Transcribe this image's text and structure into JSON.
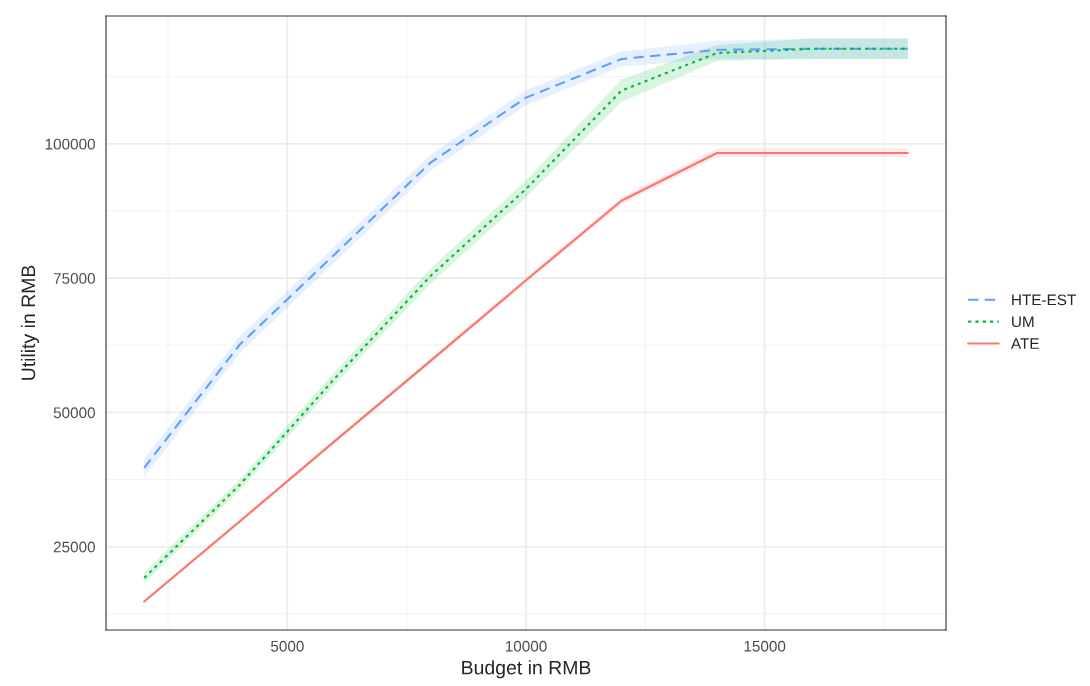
{
  "chart_data": {
    "type": "line",
    "xlabel": "Budget in RMB",
    "ylabel": "Utility in RMB",
    "x": [
      2000,
      4000,
      6000,
      8000,
      10000,
      12000,
      14000,
      16000,
      18000
    ],
    "series": [
      {
        "name": "HTE-EST",
        "color": "#619cff",
        "line_style": "dashed",
        "values": [
          39700,
          62600,
          79500,
          96500,
          108600,
          115800,
          117500,
          117700,
          117700
        ],
        "lower": [
          38000,
          61000,
          78000,
          95000,
          107200,
          114400,
          115800,
          115800,
          115800
        ],
        "upper": [
          41400,
          64200,
          81000,
          98000,
          110000,
          117200,
          119200,
          119600,
          119600
        ]
      },
      {
        "name": "UM",
        "color": "#00ba38",
        "line_style": "dotted",
        "values": [
          19200,
          36500,
          56400,
          75400,
          91600,
          109900,
          116900,
          117700,
          117700
        ],
        "lower": [
          18200,
          35500,
          55200,
          74000,
          90000,
          107800,
          115400,
          115800,
          115800
        ],
        "upper": [
          20200,
          37500,
          57600,
          76800,
          93200,
          112000,
          118400,
          119600,
          119600
        ]
      },
      {
        "name": "ATE",
        "color": "#f8766d",
        "line_style": "solid",
        "values": [
          14800,
          29700,
          44700,
          59600,
          74600,
          89400,
          98300,
          98300,
          98300
        ],
        "lower": [
          14500,
          29300,
          44300,
          59100,
          74100,
          88800,
          97500,
          97500,
          97500
        ],
        "upper": [
          15100,
          30100,
          45100,
          60100,
          75100,
          90000,
          99100,
          99100,
          99100
        ]
      }
    ],
    "xlim": [
      1200,
      18800
    ],
    "ylim": [
      9500,
      123800
    ],
    "xticks": [
      5000,
      10000,
      15000
    ],
    "yticks": [
      25000,
      50000,
      75000,
      100000
    ],
    "grid": true,
    "legend": "right"
  }
}
